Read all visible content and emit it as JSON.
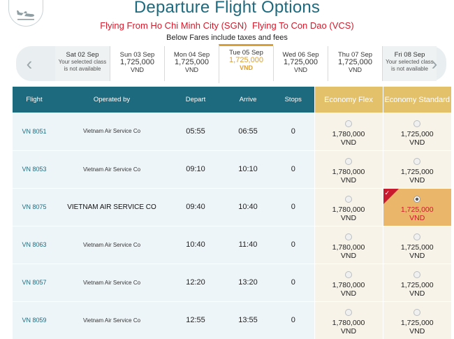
{
  "header": {
    "title": "Departure Flight Options",
    "from_text": "Flying From Ho Chi Minh City (SGN)",
    "to_text": "Flying To Con Dao (VCS)",
    "fares_note": "Below Fares include taxes and fees",
    "icon": "plane-departure-icon"
  },
  "date_strip": {
    "prev_icon": "chevron-left-icon",
    "next_icon": "chevron-right-icon",
    "days": [
      {
        "label": "Sat 02 Sep",
        "price": "",
        "currency": "",
        "note": "Your selected class is not available",
        "state": "disabled"
      },
      {
        "label": "Sun 03 Sep",
        "price": "1,725,000",
        "currency": "VND",
        "note": "",
        "state": "normal"
      },
      {
        "label": "Mon 04 Sep",
        "price": "1,725,000",
        "currency": "VND",
        "note": "",
        "state": "normal"
      },
      {
        "label": "Tue 05 Sep",
        "price": "1,725,000",
        "currency": "VND",
        "note": "",
        "state": "selected"
      },
      {
        "label": "Wed 06 Sep",
        "price": "1,725,000",
        "currency": "VND",
        "note": "",
        "state": "normal"
      },
      {
        "label": "Thu 07 Sep",
        "price": "1,725,000",
        "currency": "VND",
        "note": "",
        "state": "normal"
      },
      {
        "label": "Fri 08 Sep",
        "price": "",
        "currency": "",
        "note": "Your selected class is not available",
        "state": "disabled"
      }
    ]
  },
  "table": {
    "headers": {
      "flight": "Flight",
      "operated_by": "Operated by",
      "depart": "Depart",
      "arrive": "Arrive",
      "stops": "Stops",
      "fare_flex": "Economy Flex",
      "fare_standard": "Economy Standard"
    },
    "accent_color": "#1d6a7e",
    "fare_header_color": "#e3c06a",
    "selected_fare_color": "#e9b66a",
    "rows": [
      {
        "flight": "VN 8051",
        "operator": "Vietnam Air Service Co",
        "depart": "05:55",
        "arrive": "06:55",
        "stops": "0",
        "flex_price": "1,780,000",
        "flex_currency": "VND",
        "std_price": "1,725,000",
        "std_currency": "VND",
        "selected": false
      },
      {
        "flight": "VN 8053",
        "operator": "Vietnam Air Service Co",
        "depart": "09:10",
        "arrive": "10:10",
        "stops": "0",
        "flex_price": "1,780,000",
        "flex_currency": "VND",
        "std_price": "1,725,000",
        "std_currency": "VND",
        "selected": false
      },
      {
        "flight": "VN 8075",
        "operator": "VIETNAM AIR SERVICE CO",
        "depart": "09:40",
        "arrive": "10:40",
        "stops": "0",
        "flex_price": "1,780,000",
        "flex_currency": "VND",
        "std_price": "1,725,000",
        "std_currency": "VND",
        "selected": true
      },
      {
        "flight": "VN 8063",
        "operator": "Vietnam Air Service Co",
        "depart": "10:40",
        "arrive": "11:40",
        "stops": "0",
        "flex_price": "1,780,000",
        "flex_currency": "VND",
        "std_price": "1,725,000",
        "std_currency": "VND",
        "selected": false
      },
      {
        "flight": "VN 8057",
        "operator": "Vietnam Air Service Co",
        "depart": "12:20",
        "arrive": "13:20",
        "stops": "0",
        "flex_price": "1,780,000",
        "flex_currency": "VND",
        "std_price": "1,725,000",
        "std_currency": "VND",
        "selected": false
      },
      {
        "flight": "VN 8059",
        "operator": "Vietnam Air Service Co",
        "depart": "12:55",
        "arrive": "13:55",
        "stops": "0",
        "flex_price": "1,780,000",
        "flex_currency": "VND",
        "std_price": "1,725,000",
        "std_currency": "VND",
        "selected": false
      }
    ]
  }
}
